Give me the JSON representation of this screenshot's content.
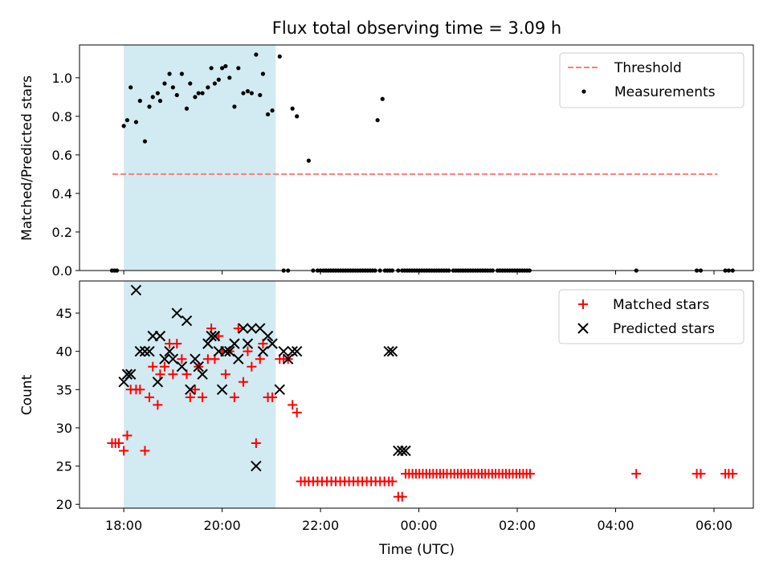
{
  "chart_data": {
    "type": "scatter",
    "title": "Flux total observing time = 3.09 h",
    "xlabel": "Time (UTC)",
    "x_unit": "hours since 18:00 UTC",
    "xlim": [
      -0.9,
      12.8
    ],
    "x_ticks": [
      0,
      2,
      4,
      6,
      8,
      10,
      12
    ],
    "x_tick_labels": [
      "18:00",
      "20:00",
      "22:00",
      "00:00",
      "02:00",
      "04:00",
      "06:00"
    ],
    "shaded_interval": [
      0,
      3.09
    ],
    "shade_color": "#add8e6",
    "panels": [
      {
        "ylabel": "Matched/Predicted stars",
        "ylim": [
          0,
          1.17
        ],
        "y_ticks": [
          0,
          0.2,
          0.4,
          0.6,
          0.8,
          1.0
        ],
        "y_tick_labels": [
          "0.0",
          "0.2",
          "0.4",
          "0.6",
          "0.8",
          "1.0"
        ],
        "legend": [
          {
            "label": "Threshold",
            "kind": "dashed-line",
            "color": "#ff7b7b"
          },
          {
            "label": "Measurements",
            "kind": "dot",
            "color": "#000000"
          }
        ],
        "threshold": {
          "value": 0.5,
          "x": [
            -0.23,
            12.07
          ],
          "color": "#ff7b7b"
        },
        "series": [
          {
            "name": "Measurements",
            "marker": "dot",
            "color": "#000000",
            "x": [
              -0.24,
              -0.19,
              -0.14,
              0.0,
              0.07,
              0.14,
              0.25,
              0.33,
              0.43,
              0.52,
              0.59,
              0.69,
              0.74,
              0.83,
              0.93,
              1.0,
              1.08,
              1.18,
              1.28,
              1.35,
              1.45,
              1.52,
              1.6,
              1.71,
              1.78,
              1.85,
              1.93,
              2.0,
              2.07,
              2.15,
              2.25,
              2.33,
              2.43,
              2.52,
              2.6,
              2.69,
              2.77,
              2.83,
              2.93,
              3.02,
              3.17,
              3.25,
              3.34,
              3.43,
              3.52,
              3.76,
              3.85,
              3.94,
              4.0,
              4.06,
              4.11,
              4.16,
              4.21,
              4.26,
              4.31,
              4.36,
              4.41,
              4.46,
              4.51,
              4.56,
              4.61,
              4.66,
              4.71,
              4.76,
              4.81,
              4.86,
              4.91,
              4.96,
              5.01,
              5.06,
              5.11,
              5.16,
              5.21,
              5.26,
              5.31,
              5.36,
              5.41,
              5.46,
              5.58,
              5.66,
              5.71,
              5.76,
              5.81,
              5.86,
              5.91,
              5.96,
              6.01,
              6.06,
              6.11,
              6.16,
              6.21,
              6.26,
              6.31,
              6.36,
              6.41,
              6.46,
              6.51,
              6.56,
              6.61,
              6.7,
              6.75,
              6.8,
              6.85,
              6.9,
              6.95,
              7.0,
              7.05,
              7.1,
              7.15,
              7.2,
              7.25,
              7.3,
              7.35,
              7.4,
              7.45,
              7.5,
              7.6,
              7.65,
              7.7,
              7.75,
              7.8,
              7.85,
              7.9,
              7.95,
              8.0,
              8.05,
              8.1,
              8.15,
              8.2,
              8.25,
              10.42,
              11.65,
              11.73,
              12.23,
              12.3,
              12.38
            ],
            "y": [
              0,
              0,
              0,
              0.75,
              0.78,
              0.95,
              0.77,
              0.88,
              0.67,
              0.85,
              0.9,
              0.92,
              0.88,
              0.97,
              1.02,
              0.95,
              0.91,
              1.02,
              0.84,
              0.97,
              0.9,
              0.92,
              0.92,
              0.95,
              1.05,
              0.97,
              0.99,
              1.05,
              1.06,
              1.0,
              0.85,
              1.05,
              0.92,
              0.93,
              0.92,
              1.12,
              0.91,
              1.02,
              0.81,
              0.83,
              1.11,
              0,
              0,
              0.84,
              0.8,
              0.57,
              0,
              0,
              0,
              0,
              0,
              0,
              0,
              0,
              0,
              0,
              0,
              0,
              0,
              0,
              0,
              0,
              0,
              0,
              0,
              0,
              0,
              0,
              0,
              0,
              0,
              0.78,
              0,
              0.89,
              0,
              0,
              0,
              0,
              0,
              0,
              0,
              0,
              0,
              0,
              0,
              0,
              0,
              0,
              0,
              0,
              0,
              0,
              0,
              0,
              0,
              0,
              0,
              0,
              0,
              0,
              0,
              0,
              0,
              0,
              0,
              0,
              0,
              0,
              0,
              0,
              0,
              0,
              0,
              0,
              0,
              0,
              0,
              0,
              0,
              0,
              0,
              0,
              0,
              0,
              0,
              0,
              0,
              0,
              0,
              0,
              0,
              0,
              0,
              0,
              0,
              0
            ]
          }
        ]
      },
      {
        "ylabel": "Count",
        "ylim": [
          19.5,
          49.2
        ],
        "y_ticks": [
          20,
          25,
          30,
          35,
          40,
          45
        ],
        "y_tick_labels": [
          "20",
          "25",
          "30",
          "35",
          "40",
          "45"
        ],
        "legend": [
          {
            "label": "Matched stars",
            "kind": "plus",
            "color": "#ff0000"
          },
          {
            "label": "Predicted stars",
            "kind": "cross",
            "color": "#000000"
          }
        ],
        "series": [
          {
            "name": "Matched stars",
            "marker": "plus",
            "color": "#ff0000",
            "x": [
              -0.24,
              -0.17,
              -0.1,
              0.0,
              0.07,
              0.14,
              0.25,
              0.33,
              0.43,
              0.52,
              0.59,
              0.69,
              0.74,
              0.83,
              0.93,
              1.0,
              1.08,
              1.18,
              1.28,
              1.35,
              1.45,
              1.52,
              1.6,
              1.71,
              1.78,
              1.85,
              1.93,
              2.0,
              2.07,
              2.15,
              2.25,
              2.33,
              2.43,
              2.52,
              2.6,
              2.69,
              2.77,
              2.83,
              2.93,
              3.02,
              3.17,
              3.25,
              3.34,
              3.43,
              3.52,
              3.6,
              3.68,
              3.76,
              3.85,
              3.94,
              4.03,
              4.13,
              4.22,
              4.31,
              4.4,
              4.49,
              4.58,
              4.67,
              4.76,
              4.85,
              4.94,
              5.03,
              5.12,
              5.21,
              5.3,
              5.39,
              5.46,
              5.58,
              5.66,
              5.73,
              5.8,
              5.87,
              5.94,
              6.01,
              6.08,
              6.15,
              6.22,
              6.29,
              6.36,
              6.43,
              6.5,
              6.57,
              6.65,
              6.72,
              6.79,
              6.86,
              6.93,
              7.0,
              7.07,
              7.14,
              7.21,
              7.28,
              7.35,
              7.42,
              7.49,
              7.56,
              7.63,
              7.7,
              7.77,
              7.84,
              7.91,
              7.98,
              8.05,
              8.12,
              8.19,
              8.26,
              10.42,
              11.65,
              11.73,
              12.23,
              12.3,
              12.38
            ],
            "y": [
              28,
              28,
              28,
              27,
              29,
              35,
              35,
              35,
              27,
              34,
              38,
              33,
              37,
              38,
              41,
              37,
              41,
              39,
              37,
              34,
              35,
              38,
              34,
              39,
              43,
              39,
              42,
              40,
              37,
              40,
              34,
              43,
              36,
              40,
              38,
              28,
              39,
              41,
              34,
              34,
              39,
              39,
              39,
              33,
              32,
              23,
              23,
              23,
              23,
              23,
              23,
              23,
              23,
              23,
              23,
              23,
              23,
              23,
              23,
              23,
              23,
              23,
              23,
              23,
              23,
              23,
              23,
              21,
              21,
              24,
              24,
              24,
              24,
              24,
              24,
              24,
              24,
              24,
              24,
              24,
              24,
              24,
              24,
              24,
              24,
              24,
              24,
              24,
              24,
              24,
              24,
              24,
              24,
              24,
              24,
              24,
              24,
              24,
              24,
              24,
              24,
              24,
              24,
              24,
              24,
              24,
              24,
              24,
              24,
              24,
              24,
              24
            ]
          },
          {
            "name": "Predicted stars",
            "marker": "cross",
            "color": "#000000",
            "x": [
              0.0,
              0.07,
              0.14,
              0.25,
              0.33,
              0.43,
              0.52,
              0.59,
              0.69,
              0.74,
              0.83,
              0.93,
              1.0,
              1.08,
              1.18,
              1.28,
              1.35,
              1.45,
              1.52,
              1.6,
              1.71,
              1.78,
              1.85,
              1.93,
              2.0,
              2.07,
              2.15,
              2.25,
              2.33,
              2.43,
              2.52,
              2.6,
              2.69,
              2.77,
              2.83,
              2.93,
              3.02,
              3.17,
              3.25,
              3.34,
              3.43,
              3.52,
              5.39,
              5.46,
              5.58,
              5.66,
              5.73
            ],
            "y": [
              36,
              37,
              37,
              48,
              40,
              40,
              40,
              42,
              36,
              42,
              39,
              40,
              39,
              45,
              38,
              44,
              35,
              39,
              38,
              37,
              41,
              42,
              42,
              40,
              35,
              40,
              40,
              41,
              39,
              43,
              41,
              43,
              25,
              43,
              40,
              42,
              41,
              35,
              40,
              39,
              40,
              40,
              40,
              40,
              27,
              27,
              27
            ]
          }
        ]
      }
    ]
  }
}
